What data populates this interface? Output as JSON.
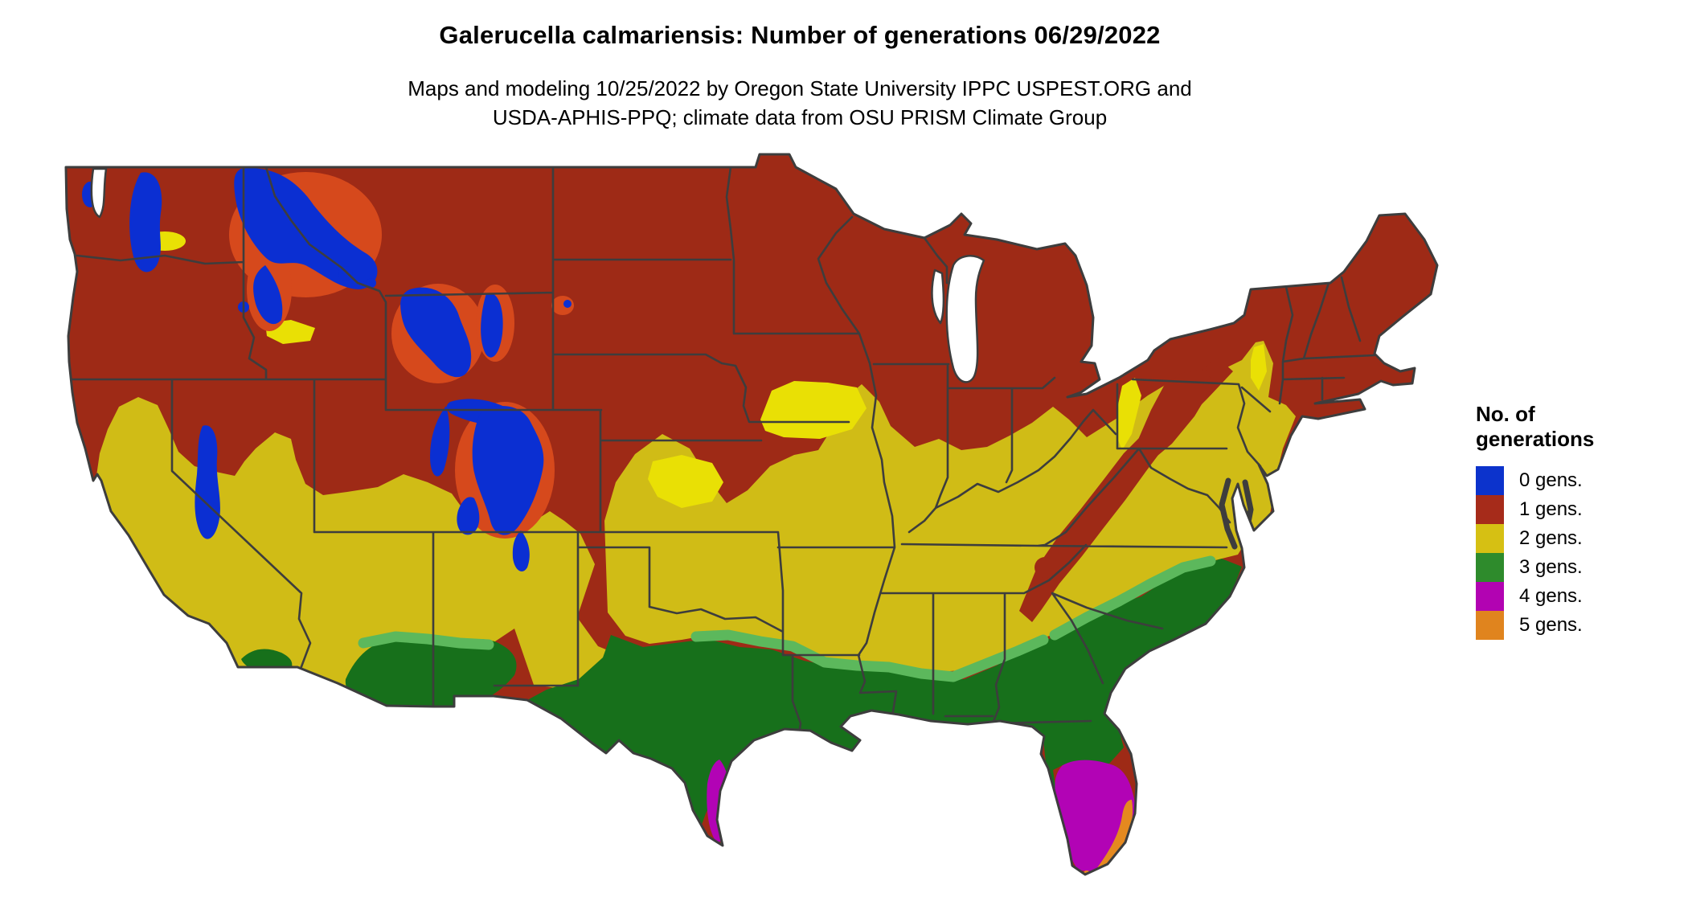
{
  "header": {
    "title": "Galerucella calmariensis: Number of generations 06/29/2022",
    "subtitle_line1": "Maps and modeling 10/25/2022 by Oregon State University IPPC USPEST.ORG and",
    "subtitle_line2": "USDA-APHIS-PPQ; climate data from OSU PRISM Climate Group"
  },
  "legend": {
    "title_line1": "No. of",
    "title_line2": "generations",
    "items": [
      {
        "label": "0 gens.",
        "color": "#0c33cc"
      },
      {
        "label": "1 gens.",
        "color": "#a62b1a"
      },
      {
        "label": "2 gens.",
        "color": "#d6c013"
      },
      {
        "label": "3 gens.",
        "color": "#2e8b2c"
      },
      {
        "label": "4 gens.",
        "color": "#b203b2"
      },
      {
        "label": "5 gens.",
        "color": "#e0841e"
      }
    ]
  },
  "map": {
    "kind": "raster choropleth of contiguous United States",
    "variable": "number of insect generations",
    "classes": [
      "0 gens.",
      "1 gens.",
      "2 gens.",
      "3 gens.",
      "4 gens.",
      "5 gens."
    ]
  },
  "colors": {
    "map_red": "#9e2a16",
    "map_red_bright": "#d6491c",
    "map_gold": "#d0bc16",
    "map_lemon": "#e9e005",
    "map_green_dark": "#17701b",
    "map_green_light": "#5cb85c",
    "map_blue": "#0b2fd2",
    "map_magenta": "#b203b5",
    "map_orange": "#e5891f",
    "border_line": "#3d3d3d",
    "lake_white": "#ffffff"
  }
}
